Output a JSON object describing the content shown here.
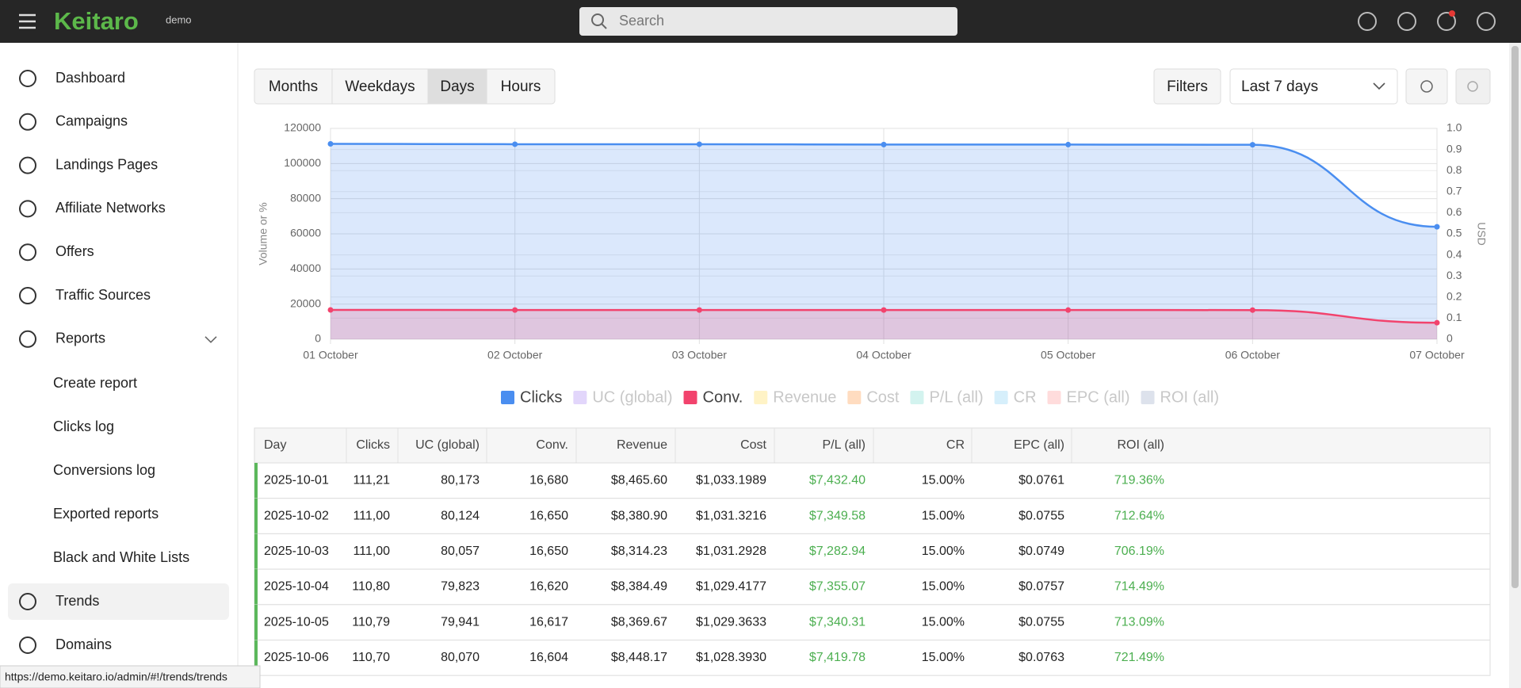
{
  "topbar": {
    "logo": "Keitaro",
    "badge": "demo",
    "search_placeholder": "Search"
  },
  "sidebar": {
    "items": [
      {
        "label": "Dashboard"
      },
      {
        "label": "Campaigns"
      },
      {
        "label": "Landings Pages"
      },
      {
        "label": "Affiliate Networks"
      },
      {
        "label": "Offers"
      },
      {
        "label": "Traffic Sources"
      },
      {
        "label": "Reports",
        "expanded": true
      }
    ],
    "subitems": [
      {
        "label": "Create report"
      },
      {
        "label": "Clicks log"
      },
      {
        "label": "Conversions log"
      },
      {
        "label": "Exported reports"
      },
      {
        "label": "Black and White Lists"
      }
    ],
    "after": [
      {
        "label": "Trends",
        "active": true
      },
      {
        "label": "Domains"
      }
    ]
  },
  "toolbar": {
    "tabs": [
      {
        "label": "Months"
      },
      {
        "label": "Weekdays"
      },
      {
        "label": "Days",
        "active": true
      },
      {
        "label": "Hours"
      }
    ],
    "filters": "Filters",
    "period": "Last 7 days"
  },
  "chart_data": {
    "type": "area",
    "y_label": "Volume or %",
    "y2_label": "USD",
    "categories": [
      "01 October",
      "02 October",
      "03 October",
      "04 October",
      "05 October",
      "06 October",
      "07 October"
    ],
    "series": [
      {
        "name": "Clicks",
        "color": "#4a8ef0",
        "values": [
          111200,
          111000,
          111000,
          110800,
          110790,
          110700,
          64000
        ]
      },
      {
        "name": "Conv.",
        "color": "#f2436d",
        "values": [
          16680,
          16650,
          16650,
          16620,
          16617,
          16604,
          9400
        ]
      }
    ],
    "hidden_series": [
      {
        "name": "UC (global)",
        "color": "#e2d6fb"
      },
      {
        "name": "Revenue",
        "color": "#fff3c6"
      },
      {
        "name": "Cost",
        "color": "#ffdcc0"
      },
      {
        "name": "P/L (all)",
        "color": "#d3f3ef"
      },
      {
        "name": "CR",
        "color": "#d6effb"
      },
      {
        "name": "EPC (all)",
        "color": "#ffdcdc"
      },
      {
        "name": "ROI (all)",
        "color": "#dde2ec"
      }
    ],
    "ylim": [
      0,
      120000
    ],
    "yticks": [
      0,
      20000,
      40000,
      60000,
      80000,
      100000,
      120000
    ],
    "y2lim": [
      0,
      1
    ],
    "y2ticks": [
      0,
      0.1,
      0.2,
      0.3,
      0.4,
      0.5,
      0.6,
      0.7,
      0.8,
      0.9,
      {
        "value": 1,
        "label": "1.0"
      }
    ],
    "grid": true
  },
  "table": {
    "columns": [
      "Day",
      "Clicks",
      "UC (global)",
      "Conv.",
      "Revenue",
      "Cost",
      "P/L (all)",
      "CR",
      "EPC (all)",
      "ROI (all)"
    ],
    "rows": [
      [
        "2025-10-01",
        "111,21",
        "80,173",
        "16,680",
        "$8,465.60",
        "$1,033.1989",
        "$7,432.40",
        "15.00%",
        "$0.0761",
        "719.36%"
      ],
      [
        "2025-10-02",
        "111,00",
        "80,124",
        "16,650",
        "$8,380.90",
        "$1,031.3216",
        "$7,349.58",
        "15.00%",
        "$0.0755",
        "712.64%"
      ],
      [
        "2025-10-03",
        "111,00",
        "80,057",
        "16,650",
        "$8,314.23",
        "$1,031.2928",
        "$7,282.94",
        "15.00%",
        "$0.0749",
        "706.19%"
      ],
      [
        "2025-10-04",
        "110,80",
        "79,823",
        "16,620",
        "$8,384.49",
        "$1,029.4177",
        "$7,355.07",
        "15.00%",
        "$0.0757",
        "714.49%"
      ],
      [
        "2025-10-05",
        "110,79",
        "79,941",
        "16,617",
        "$8,369.67",
        "$1,029.3633",
        "$7,340.31",
        "15.00%",
        "$0.0755",
        "713.09%"
      ],
      [
        "2025-10-06",
        "110,70",
        "80,070",
        "16,604",
        "$8,448.17",
        "$1,028.3930",
        "$7,419.78",
        "15.00%",
        "$0.0763",
        "721.49%"
      ]
    ]
  },
  "status_url": "https://demo.keitaro.io/admin/#!/trends/trends"
}
